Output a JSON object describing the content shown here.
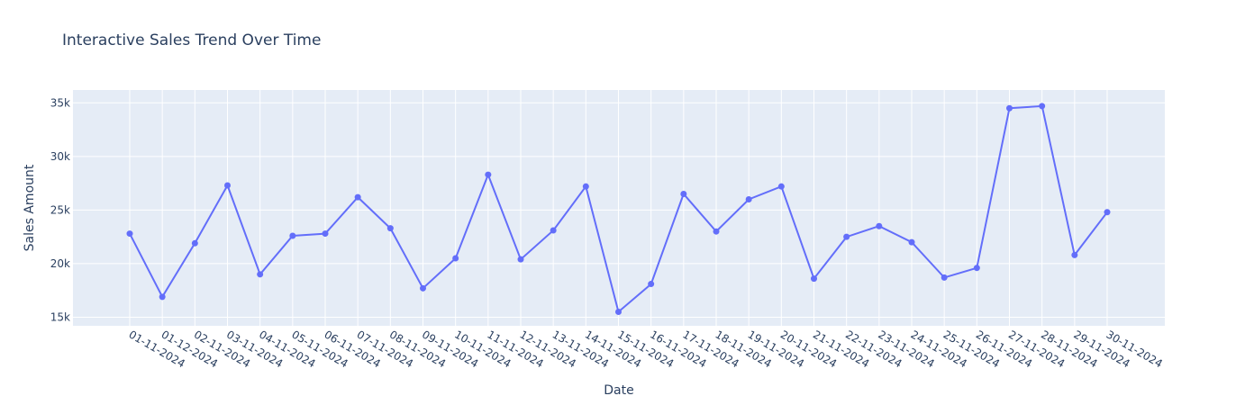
{
  "chart_data": {
    "type": "line",
    "title": "Interactive Sales Trend Over Time",
    "xlabel": "Date",
    "ylabel": "Sales Amount",
    "x": [
      "01-11-2024",
      "01-12-2024",
      "02-11-2024",
      "03-11-2024",
      "04-11-2024",
      "05-11-2024",
      "06-11-2024",
      "07-11-2024",
      "08-11-2024",
      "09-11-2024",
      "10-11-2024",
      "11-11-2024",
      "12-11-2024",
      "13-11-2024",
      "14-11-2024",
      "15-11-2024",
      "16-11-2024",
      "17-11-2024",
      "18-11-2024",
      "19-11-2024",
      "20-11-2024",
      "21-11-2024",
      "22-11-2024",
      "23-11-2024",
      "24-11-2024",
      "25-11-2024",
      "26-11-2024",
      "27-11-2024",
      "28-11-2024",
      "29-11-2024",
      "30-11-2024"
    ],
    "values": [
      22800,
      16900,
      21900,
      27300,
      19000,
      22600,
      22800,
      26200,
      23300,
      17700,
      20500,
      28300,
      20400,
      23100,
      27200,
      15500,
      18100,
      26500,
      23000,
      26000,
      27200,
      18600,
      22500,
      23500,
      22000,
      18700,
      19600,
      34500,
      34700,
      20800,
      24800
    ],
    "ylim": [
      14200,
      36200
    ],
    "yticks": [
      15000,
      20000,
      25000,
      30000,
      35000
    ],
    "ytick_labels": [
      "15k",
      "20k",
      "25k",
      "30k",
      "35k"
    ],
    "grid": true,
    "legend": "none",
    "colors": {
      "line": "#636efa",
      "plot_bg": "#e5ecf6",
      "grid": "#ffffff",
      "text": "#2a3f5f"
    }
  }
}
